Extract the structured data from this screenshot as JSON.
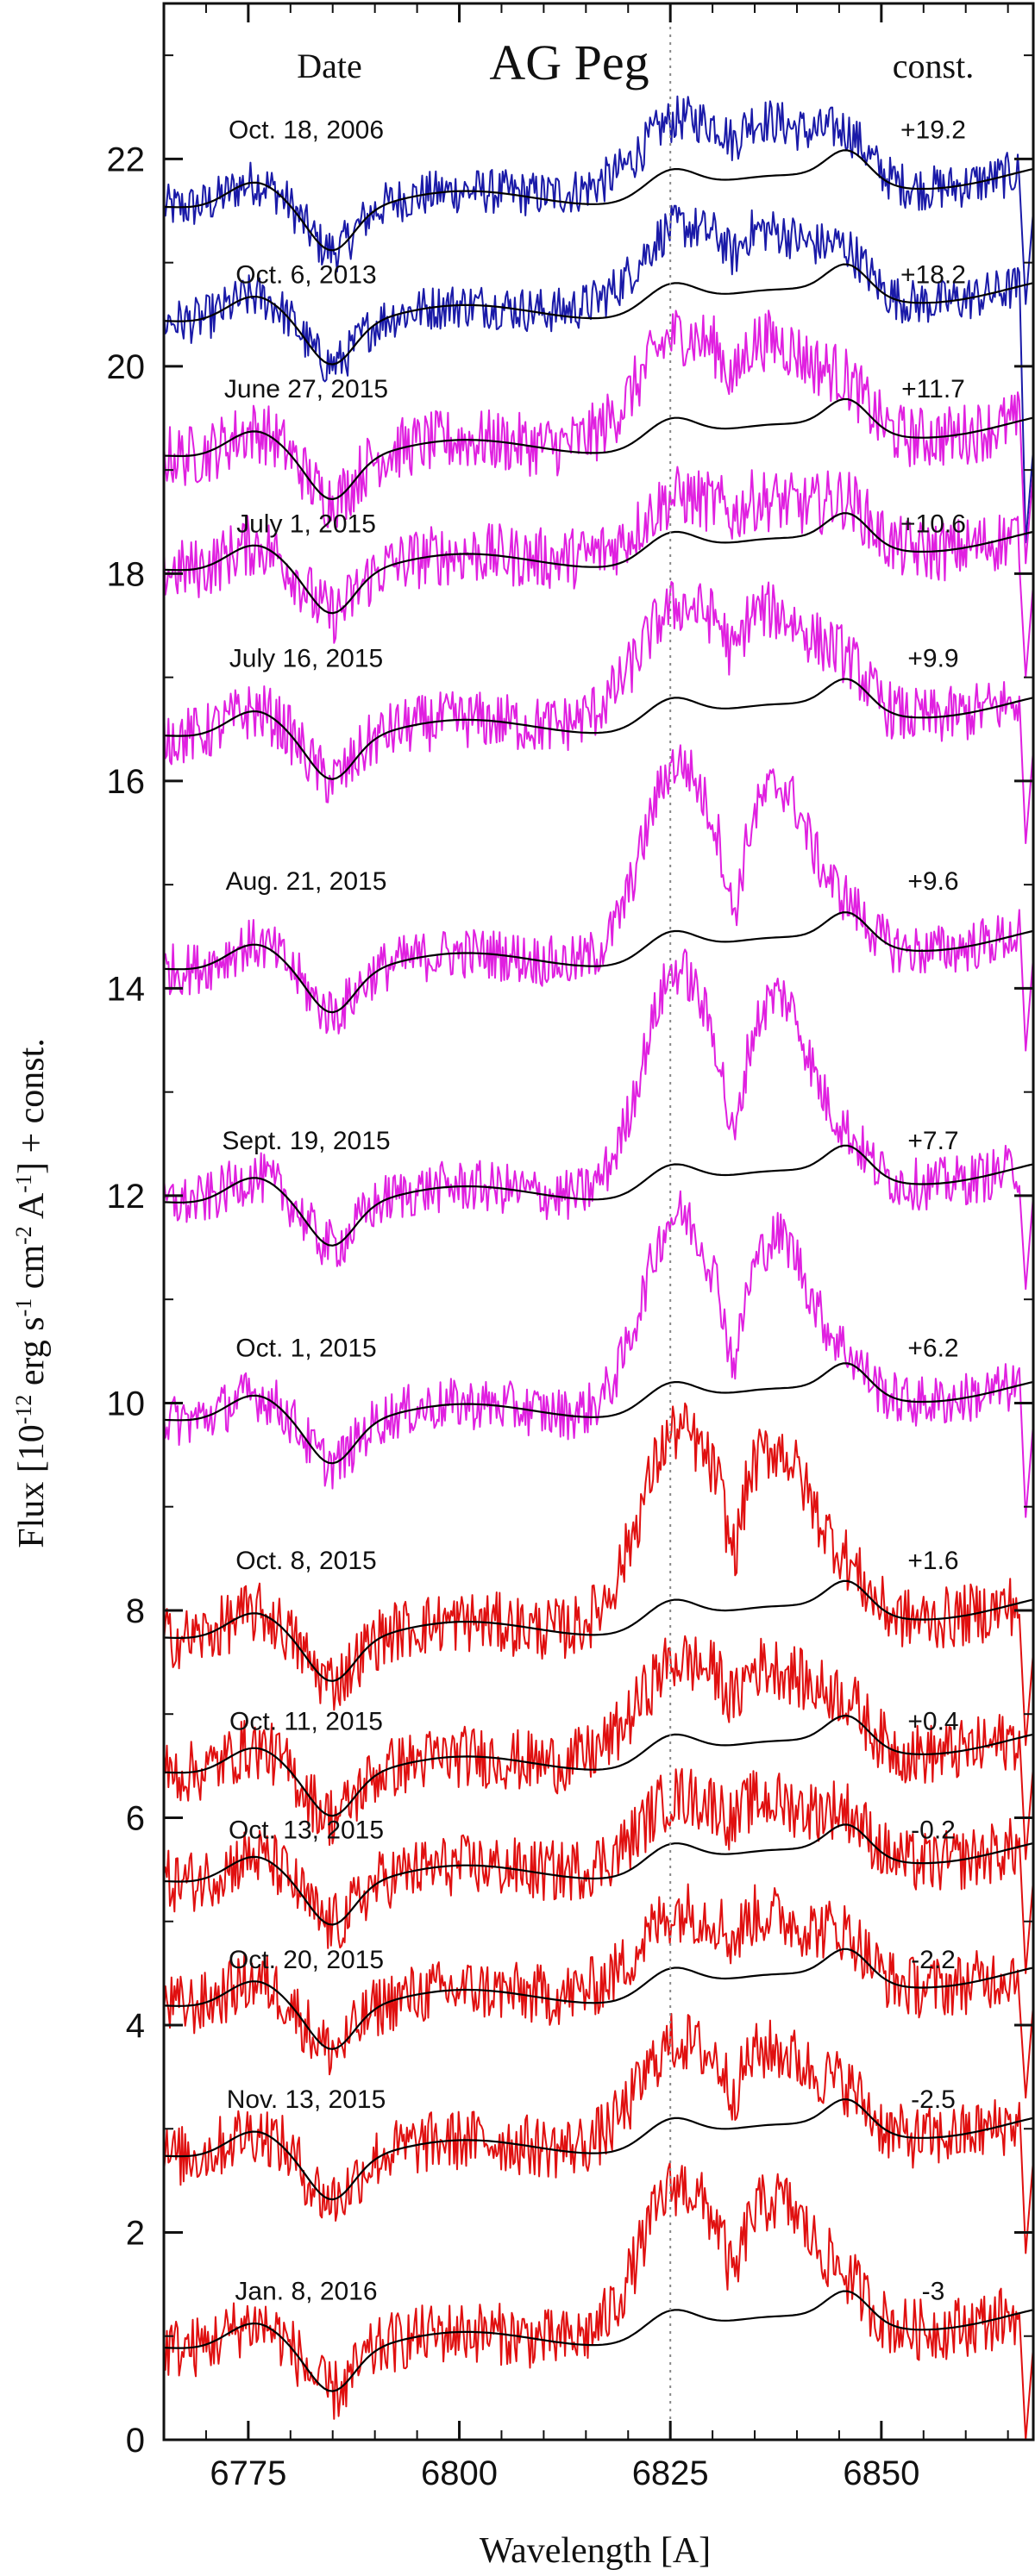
{
  "chart_data": {
    "type": "line",
    "title": "AG Peg",
    "header_left": "Date",
    "header_right": "const.",
    "xlabel": "Wavelength [A]",
    "ylabel_parts": [
      "Flux [10",
      "-12",
      " erg s",
      "-1",
      " cm",
      "-2",
      " A",
      "-1",
      "] + const."
    ],
    "xlim": [
      6765,
      6868
    ],
    "ylim": [
      0,
      23.5
    ],
    "xticks": [
      6775,
      6800,
      6825,
      6850
    ],
    "yticks": [
      0,
      2,
      4,
      6,
      8,
      10,
      12,
      14,
      16,
      18,
      20,
      22
    ],
    "reference_line_x": 6825,
    "colors": {
      "blue": "#1a1aa8",
      "magenta": "#e020e0",
      "red": "#e01010",
      "model": "#000000",
      "refline": "#888888"
    },
    "series": [
      {
        "date": "Oct. 18, 2006",
        "const": "+19.2",
        "color": "blue",
        "base": 21.45,
        "em_amp": 0.5,
        "em_width": 14,
        "dip": 0.25,
        "noise": 0.22,
        "label_y": 22.2,
        "tail_y": 21.8
      },
      {
        "date": "Oct. 6, 2013",
        "const": "+18.2",
        "color": "blue",
        "base": 20.35,
        "em_amp": 0.6,
        "em_width": 12,
        "dip": 0.25,
        "noise": 0.22,
        "label_y": 20.8,
        "tail_y": 19.5
      },
      {
        "date": "June 27, 2015",
        "const": "+11.7",
        "color": "magenta",
        "base": 19.05,
        "em_amp": 0.9,
        "em_width": 11,
        "dip": 0.35,
        "noise": 0.3,
        "label_y": 19.7,
        "tail_y": 19.3
      },
      {
        "date": "July 1, 2015",
        "const": "+10.6",
        "color": "magenta",
        "base": 17.95,
        "em_amp": 0.35,
        "em_width": 14,
        "dip": 0.35,
        "noise": 0.3,
        "label_y": 18.4,
        "tail_y": 18.2
      },
      {
        "date": "July 16, 2015",
        "const": "+9.9",
        "color": "magenta",
        "base": 16.35,
        "em_amp": 1.0,
        "em_width": 11,
        "dip": 0.4,
        "noise": 0.28,
        "label_y": 17.1,
        "tail_y": 16.6
      },
      {
        "date": "Aug. 21, 2015",
        "const": "+9.6",
        "color": "magenta",
        "base": 14.1,
        "em_amp": 1.9,
        "em_width": 8,
        "dip": 0.45,
        "noise": 0.25,
        "label_y": 14.95,
        "tail_y": 14.6
      },
      {
        "date": "Sept. 19, 2015",
        "const": "+7.7",
        "color": "magenta",
        "base": 11.85,
        "em_amp": 2.2,
        "em_width": 8,
        "dip": 0.45,
        "noise": 0.25,
        "label_y": 12.45,
        "tail_y": 12.3
      },
      {
        "date": "Oct. 1, 2015",
        "const": "+6.2",
        "color": "magenta",
        "base": 9.75,
        "em_amp": 1.9,
        "em_width": 8,
        "dip": 0.4,
        "noise": 0.25,
        "label_y": 10.45,
        "tail_y": 10.1
      },
      {
        "date": "Oct. 8, 2015",
        "const": "+1.6",
        "color": "red",
        "base": 7.65,
        "em_amp": 1.9,
        "em_width": 9,
        "dip": 0.45,
        "noise": 0.3,
        "label_y": 8.4,
        "tail_y": 7.9
      },
      {
        "date": "Oct. 11, 2015",
        "const": "+0.4",
        "color": "red",
        "base": 6.35,
        "em_amp": 0.8,
        "em_width": 11,
        "dip": 0.45,
        "noise": 0.3,
        "label_y": 6.85,
        "tail_y": 6.8
      },
      {
        "date": "Oct. 13, 2015",
        "const": "-0.2",
        "color": "red",
        "base": 5.3,
        "em_amp": 0.5,
        "em_width": 12,
        "dip": 0.45,
        "noise": 0.3,
        "label_y": 5.8,
        "tail_y": 5.7
      },
      {
        "date": "Oct. 20, 2015",
        "const": "-2.2",
        "color": "red",
        "base": 4.1,
        "em_amp": 0.6,
        "em_width": 12,
        "dip": 0.45,
        "noise": 0.3,
        "label_y": 4.55,
        "tail_y": 4.5
      },
      {
        "date": "Nov. 13, 2015",
        "const": "-2.5",
        "color": "red",
        "base": 2.65,
        "em_amp": 0.85,
        "em_width": 10,
        "dip": 0.45,
        "noise": 0.3,
        "label_y": 3.2,
        "tail_y": 3.0
      },
      {
        "date": "Jan. 8, 2016",
        "const": "-3",
        "color": "red",
        "base": 0.8,
        "em_amp": 1.4,
        "em_width": 9,
        "dip": 0.4,
        "noise": 0.3,
        "label_y": 1.35,
        "tail_y": 1.2
      }
    ]
  }
}
